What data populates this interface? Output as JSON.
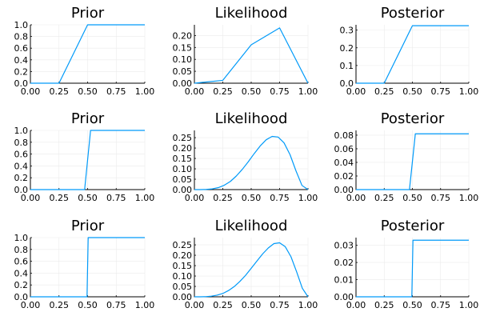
{
  "colors": {
    "line": "#009af9",
    "grid": "#ebebeb",
    "axis": "#000000",
    "background": "#ffffff"
  },
  "chart_data": [
    {
      "type": "line",
      "title": "Prior",
      "xlim": [
        0,
        1
      ],
      "ylim": [
        0,
        1
      ],
      "xticks": [
        "0.00",
        "0.25",
        "0.50",
        "0.75",
        "1.00"
      ],
      "xtick_values": [
        0,
        0.25,
        0.5,
        0.75,
        1
      ],
      "yticks": [
        "0.0",
        "0.2",
        "0.4",
        "0.6",
        "0.8",
        "1.0"
      ],
      "ytick_values": [
        0,
        0.2,
        0.4,
        0.6,
        0.8,
        1
      ],
      "x": [
        0,
        0.25,
        0.5,
        0.75,
        1
      ],
      "y": [
        0,
        0,
        1,
        1,
        1
      ]
    },
    {
      "type": "line",
      "title": "Likelihood",
      "xlim": [
        0,
        1
      ],
      "ylim": [
        0,
        0.245
      ],
      "xticks": [
        "0.00",
        "0.25",
        "0.50",
        "0.75",
        "1.00"
      ],
      "xtick_values": [
        0,
        0.25,
        0.5,
        0.75,
        1
      ],
      "yticks": [
        "0.00",
        "0.05",
        "0.10",
        "0.15",
        "0.20"
      ],
      "ytick_values": [
        0,
        0.05,
        0.1,
        0.15,
        0.2
      ],
      "x": [
        0,
        0.25,
        0.5,
        0.75,
        1
      ],
      "y": [
        0,
        0.012,
        0.161,
        0.232,
        0
      ]
    },
    {
      "type": "line",
      "title": "Posterior",
      "xlim": [
        0,
        1
      ],
      "ylim": [
        0,
        0.33
      ],
      "xticks": [
        "0.00",
        "0.25",
        "0.50",
        "0.75",
        "1.00"
      ],
      "xtick_values": [
        0,
        0.25,
        0.5,
        0.75,
        1
      ],
      "yticks": [
        "0.0",
        "0.1",
        "0.2",
        "0.3"
      ],
      "ytick_values": [
        0,
        0.1,
        0.2,
        0.3
      ],
      "x": [
        0,
        0.25,
        0.5,
        0.75,
        1
      ],
      "y": [
        0,
        0,
        0.325,
        0.325,
        0.325
      ]
    },
    {
      "type": "line",
      "title": "Prior",
      "xlim": [
        0,
        1
      ],
      "ylim": [
        0,
        1
      ],
      "xticks": [
        "0.00",
        "0.25",
        "0.50",
        "0.75",
        "1.00"
      ],
      "xtick_values": [
        0,
        0.25,
        0.5,
        0.75,
        1
      ],
      "yticks": [
        "0.0",
        "0.2",
        "0.4",
        "0.6",
        "0.8",
        "1.0"
      ],
      "ytick_values": [
        0,
        0.2,
        0.4,
        0.6,
        0.8,
        1
      ],
      "x": [
        0,
        0.474,
        0.526,
        1
      ],
      "y": [
        0,
        0,
        1,
        1
      ]
    },
    {
      "type": "line",
      "title": "Likelihood",
      "xlim": [
        0,
        1
      ],
      "ylim": [
        0,
        0.285
      ],
      "xticks": [
        "0.00",
        "0.25",
        "0.50",
        "0.75",
        "1.00"
      ],
      "xtick_values": [
        0,
        0.25,
        0.5,
        0.75,
        1
      ],
      "yticks": [
        "0.00",
        "0.05",
        "0.10",
        "0.15",
        "0.20",
        "0.25"
      ],
      "ytick_values": [
        0,
        0.05,
        0.1,
        0.15,
        0.2,
        0.25
      ],
      "x": [
        0,
        0.053,
        0.105,
        0.158,
        0.211,
        0.263,
        0.316,
        0.368,
        0.421,
        0.474,
        0.526,
        0.579,
        0.632,
        0.684,
        0.737,
        0.789,
        0.842,
        0.895,
        0.947,
        1
      ],
      "y": [
        0,
        0.0001,
        0.0009,
        0.0035,
        0.0096,
        0.021,
        0.039,
        0.065,
        0.097,
        0.134,
        0.173,
        0.21,
        0.24,
        0.256,
        0.253,
        0.225,
        0.168,
        0.089,
        0.02,
        0
      ]
    },
    {
      "type": "line",
      "title": "Posterior",
      "xlim": [
        0,
        1
      ],
      "ylim": [
        0,
        0.087
      ],
      "xticks": [
        "0.00",
        "0.25",
        "0.50",
        "0.75",
        "1.00"
      ],
      "xtick_values": [
        0,
        0.25,
        0.5,
        0.75,
        1
      ],
      "yticks": [
        "0.00",
        "0.02",
        "0.04",
        "0.06",
        "0.08"
      ],
      "ytick_values": [
        0,
        0.02,
        0.04,
        0.06,
        0.08
      ],
      "x": [
        0,
        0.474,
        0.526,
        1
      ],
      "y": [
        0,
        0,
        0.082,
        0.082
      ]
    },
    {
      "type": "line",
      "title": "Prior",
      "xlim": [
        0,
        1
      ],
      "ylim": [
        0,
        1
      ],
      "xticks": [
        "0.00",
        "0.25",
        "0.50",
        "0.75",
        "1.00"
      ],
      "xtick_values": [
        0,
        0.25,
        0.5,
        0.75,
        1
      ],
      "yticks": [
        "0.0",
        "0.2",
        "0.4",
        "0.6",
        "0.8",
        "1.0"
      ],
      "ytick_values": [
        0,
        0.2,
        0.4,
        0.6,
        0.8,
        1
      ],
      "x": [
        0,
        0.495,
        0.505,
        1
      ],
      "y": [
        0,
        0,
        1,
        1
      ]
    },
    {
      "type": "line",
      "title": "Likelihood",
      "xlim": [
        0,
        1
      ],
      "ylim": [
        0,
        0.285
      ],
      "xticks": [
        "0.00",
        "0.25",
        "0.50",
        "0.75",
        "1.00"
      ],
      "xtick_values": [
        0,
        0.25,
        0.5,
        0.75,
        1
      ],
      "yticks": [
        "0.00",
        "0.05",
        "0.10",
        "0.15",
        "0.20",
        "0.25"
      ],
      "ytick_values": [
        0,
        0.05,
        0.1,
        0.15,
        0.2,
        0.25
      ],
      "x": [
        0,
        0.05,
        0.1,
        0.15,
        0.2,
        0.25,
        0.3,
        0.35,
        0.4,
        0.45,
        0.5,
        0.55,
        0.6,
        0.65,
        0.7,
        0.75,
        0.8,
        0.85,
        0.9,
        0.95,
        1
      ],
      "y": [
        0,
        0.0001,
        0.0008,
        0.003,
        0.008,
        0.016,
        0.03,
        0.049,
        0.074,
        0.103,
        0.137,
        0.172,
        0.206,
        0.235,
        0.256,
        0.26,
        0.241,
        0.193,
        0.12,
        0.041,
        0
      ]
    },
    {
      "type": "line",
      "title": "Posterior",
      "xlim": [
        0,
        1
      ],
      "ylim": [
        0,
        0.0345
      ],
      "xticks": [
        "0.00",
        "0.25",
        "0.50",
        "0.75",
        "1.00"
      ],
      "xtick_values": [
        0,
        0.25,
        0.5,
        0.75,
        1
      ],
      "yticks": [
        "0.00",
        "0.01",
        "0.02",
        "0.03"
      ],
      "ytick_values": [
        0,
        0.01,
        0.02,
        0.03
      ],
      "x": [
        0,
        0.495,
        0.505,
        1
      ],
      "y": [
        0,
        0,
        0.033,
        0.033
      ]
    }
  ]
}
